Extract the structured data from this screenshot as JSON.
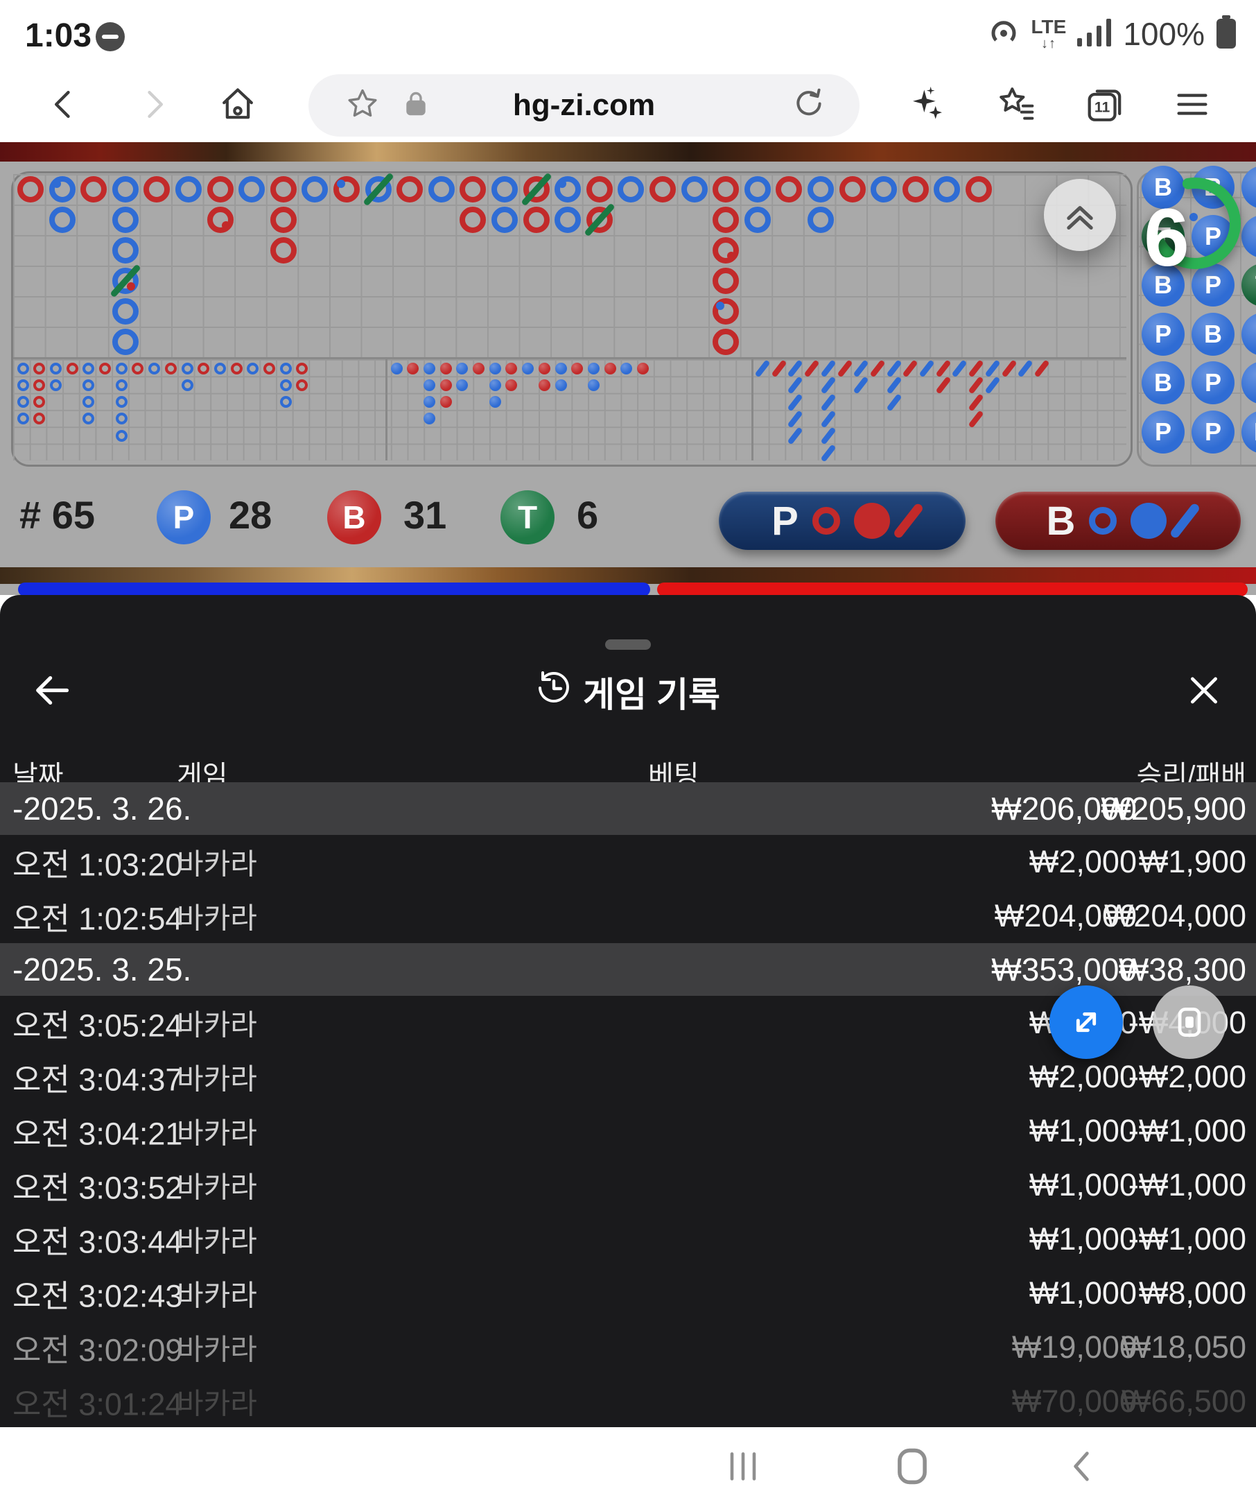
{
  "status": {
    "time": "1:03",
    "network": "LTE",
    "battery": "100%"
  },
  "browser": {
    "url": "hg-zi.com",
    "tabs": "11"
  },
  "board": {
    "countdown": "6",
    "big_road": [
      [
        "R"
      ],
      [
        "B.",
        "B"
      ],
      [
        "R"
      ],
      [
        "B",
        "B",
        "B",
        "B/,",
        "B",
        "B"
      ],
      [
        "R"
      ],
      [
        "B"
      ],
      [
        "R",
        "R,"
      ],
      [
        "B"
      ],
      [
        "R",
        "R",
        "R"
      ],
      [
        "B"
      ],
      [
        "R."
      ],
      [
        "B/"
      ],
      [
        "R"
      ],
      [
        "B"
      ],
      [
        "R",
        "R"
      ],
      [
        "B",
        "B"
      ],
      [
        "R/",
        "R"
      ],
      [
        "B.",
        "B"
      ],
      [
        "R",
        "R/"
      ],
      [
        "B"
      ],
      [
        "R"
      ],
      [
        "B"
      ],
      [
        "R",
        "R",
        "R,",
        "R",
        "R.",
        "R"
      ],
      [
        "B",
        "B"
      ],
      [
        "R"
      ],
      [
        "B",
        "B"
      ],
      [
        "R"
      ],
      [
        "B"
      ],
      [
        "R"
      ],
      [
        "B"
      ],
      [
        "R"
      ]
    ],
    "big_eye": [
      [
        "B",
        "B",
        "B",
        "B"
      ],
      [
        "R",
        "R",
        "R",
        "R"
      ],
      [
        "B",
        "B"
      ],
      [
        "R"
      ],
      [
        "B",
        "B",
        "B",
        "B"
      ],
      [
        "R"
      ],
      [
        "B",
        "B",
        "B",
        "B",
        "B"
      ],
      [
        "R"
      ],
      [
        "B"
      ],
      [
        "R"
      ],
      [
        "B",
        "B"
      ],
      [
        "R"
      ],
      [
        "B"
      ],
      [
        "R"
      ],
      [
        "B"
      ],
      [
        "R"
      ],
      [
        "B",
        "B",
        "B"
      ],
      [
        "R",
        "R"
      ]
    ],
    "small_road": [
      [
        "B"
      ],
      [
        "R"
      ],
      [
        "B",
        "B",
        "B",
        "B"
      ],
      [
        "R",
        "R",
        "R"
      ],
      [
        "B",
        "B"
      ],
      [
        "R"
      ],
      [
        "B",
        "B",
        "B"
      ],
      [
        "R",
        "R"
      ],
      [
        "B"
      ],
      [
        "R",
        "R"
      ],
      [
        "B",
        "B"
      ],
      [
        "R"
      ],
      [
        "B",
        "B"
      ],
      [
        "R"
      ],
      [
        "B"
      ],
      [
        "R"
      ]
    ],
    "cockroach": [
      [
        "B"
      ],
      [
        "R"
      ],
      [
        "B",
        "B",
        "B",
        "B",
        "B"
      ],
      [
        "R"
      ],
      [
        "B",
        "B",
        "B",
        "B",
        "B",
        "B"
      ],
      [
        "R"
      ],
      [
        "B",
        "B"
      ],
      [
        "R"
      ],
      [
        "B",
        "B",
        "B"
      ],
      [
        "R"
      ],
      [
        "B"
      ],
      [
        "R",
        "R"
      ],
      [
        "B"
      ],
      [
        "R",
        "R",
        "R",
        "R"
      ],
      [
        "B",
        "B"
      ],
      [
        "R"
      ],
      [
        "B"
      ],
      [
        "R"
      ]
    ],
    "bead": [
      [
        "B",
        "T",
        "B",
        "P",
        "B",
        "P"
      ],
      [
        "B",
        "P.",
        "P",
        "B",
        "P",
        "P"
      ],
      [
        "P",
        "P",
        "T",
        "P",
        "P",
        "B"
      ]
    ]
  },
  "stats": {
    "hand_prefix": "# 65",
    "p_label": "P",
    "p_count": "28",
    "b_label": "B",
    "b_count": "31",
    "t_label": "T",
    "t_count": "6"
  },
  "predict": {
    "p_label": "P",
    "b_label": "B"
  },
  "sheet": {
    "title": "게임 기록",
    "columns": {
      "date": "날짜",
      "game": "게임",
      "bet": "베팅",
      "winloss": "승리/패배"
    },
    "rows": [
      {
        "type": "group",
        "date": "-2025. 3. 26.",
        "bet": "₩206,000",
        "win": "₩205,900"
      },
      {
        "type": "row",
        "time": "오전 1:03:20",
        "game": "바카라",
        "bet": "₩2,000",
        "win": "₩1,900"
      },
      {
        "type": "row",
        "time": "오전 1:02:54",
        "game": "바카라",
        "bet": "₩204,000",
        "win": "₩204,000"
      },
      {
        "type": "group",
        "date": "-2025. 3. 25.",
        "bet": "₩353,000",
        "win": "₩38,300"
      },
      {
        "type": "row",
        "time": "오전 3:05:24",
        "game": "바카라",
        "bet": "₩4,000",
        "win": "-₩4,000"
      },
      {
        "type": "row",
        "time": "오전 3:04:37",
        "game": "바카라",
        "bet": "₩2,000",
        "win": "-₩2,000"
      },
      {
        "type": "row",
        "time": "오전 3:04:21",
        "game": "바카라",
        "bet": "₩1,000",
        "win": "-₩1,000"
      },
      {
        "type": "row",
        "time": "오전 3:03:52",
        "game": "바카라",
        "bet": "₩1,000",
        "win": "-₩1,000"
      },
      {
        "type": "row",
        "time": "오전 3:03:44",
        "game": "바카라",
        "bet": "₩1,000",
        "win": "-₩1,000"
      },
      {
        "type": "row",
        "time": "오전 3:02:43",
        "game": "바카라",
        "bet": "₩1,000",
        "win": "₩8,000"
      },
      {
        "type": "row",
        "time": "오전 3:02:09",
        "game": "바카라",
        "bet": "₩19,000",
        "win": "₩18,050",
        "dim": true
      },
      {
        "type": "row",
        "time": "오전 3:01:24",
        "game": "바카라",
        "bet": "₩70,000",
        "win": "₩66,500",
        "faint": true
      }
    ]
  },
  "colors": {
    "red": "#c22a2a",
    "blue": "#2f6cd4",
    "tie_slash_green": "#1a7a44",
    "bead_tie_green": "#156136",
    "countdown_green": "#2bb254",
    "p_button_navy": "#16315f",
    "b_button_maroon": "#7c1d1d",
    "fab_blue": "#1a7cf0",
    "sheet_bg": "#1a1a1c",
    "group_row_bg": "#3e3e40",
    "bar_blue": "#1329e2",
    "bar_red": "#e31313"
  }
}
